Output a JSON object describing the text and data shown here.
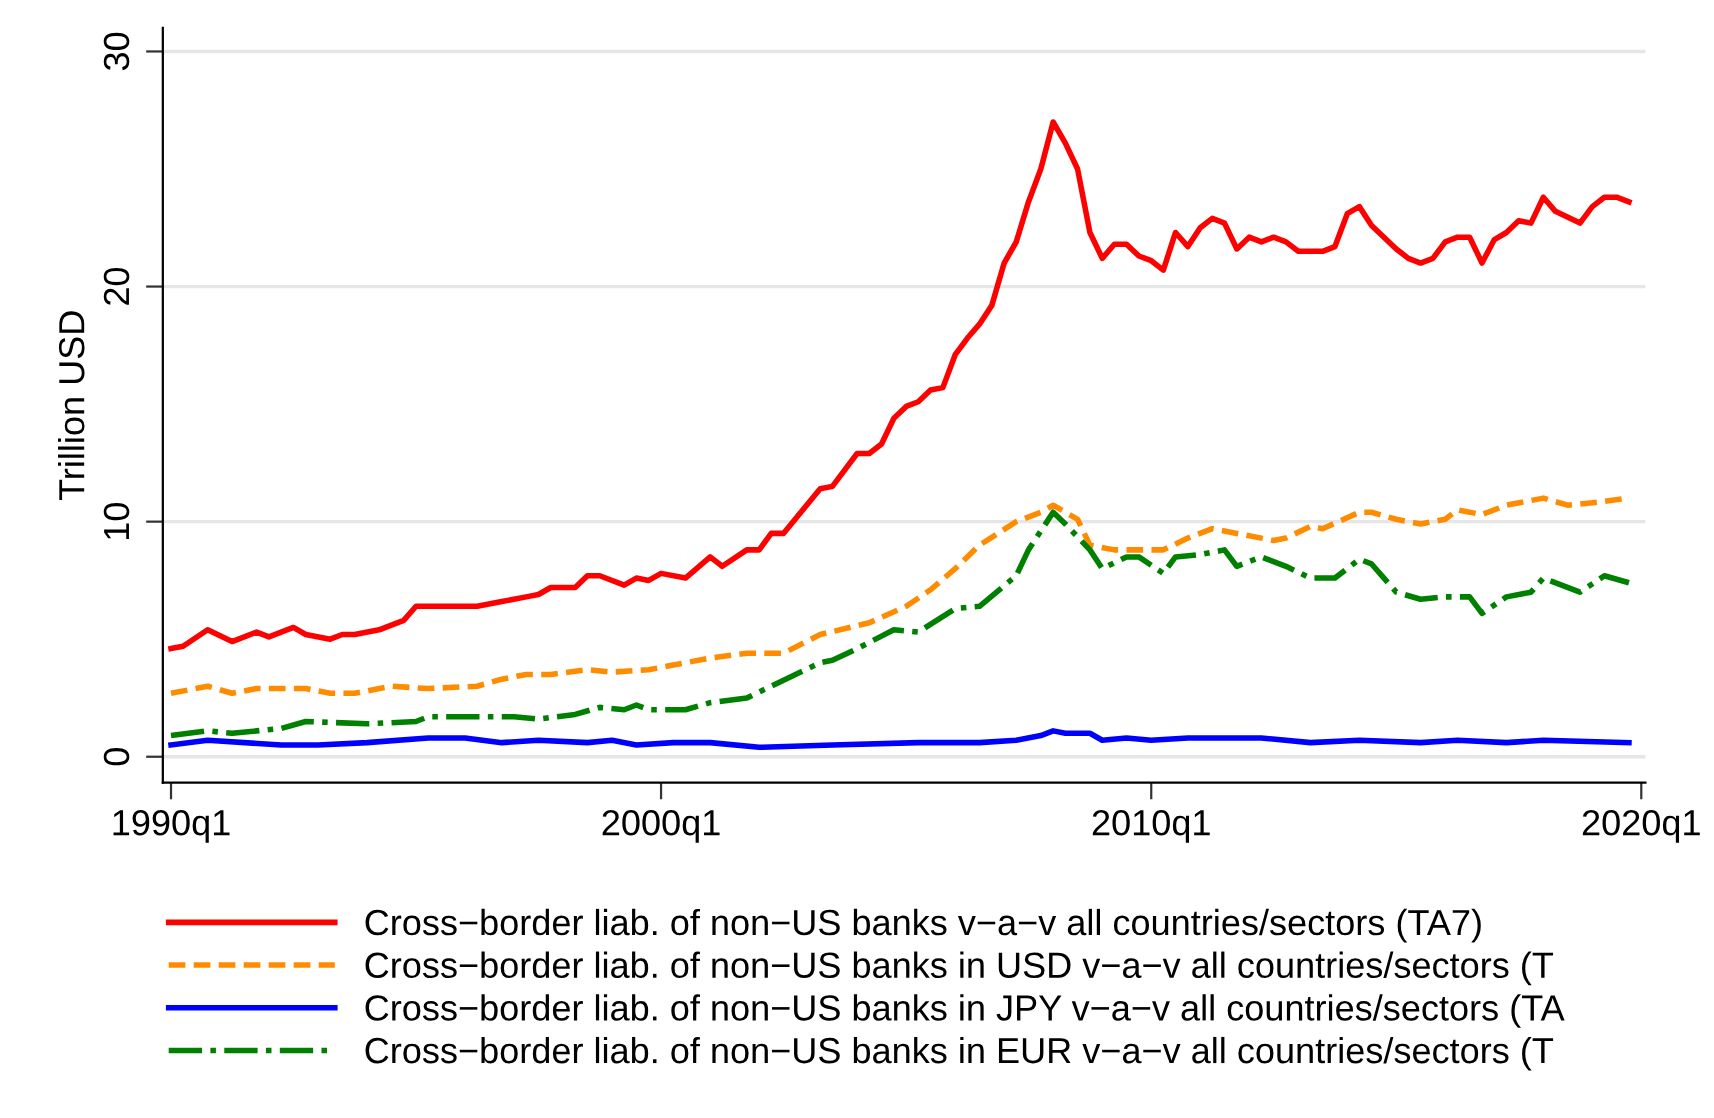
{
  "chart_data": {
    "type": "line",
    "ylabel": "Trillion USD",
    "xlim": [
      "1989-11",
      "2020-02"
    ],
    "ylim": [
      -1.1,
      31
    ],
    "xticks": [
      {
        "value": "1990-01",
        "label": "1990q1"
      },
      {
        "value": "2000-01",
        "label": "2000q1"
      },
      {
        "value": "2010-01",
        "label": "2010q1"
      },
      {
        "value": "2020-01",
        "label": "2020q1"
      }
    ],
    "yticks": [
      0,
      10,
      20,
      30
    ],
    "grid": "y",
    "legend": "bottom",
    "series": [
      {
        "name": "Cross−border liab. of non−US banks v−a−v all countries/sectors (TA7)",
        "color": "#ff0000",
        "line_style": "solid",
        "x": [
          "1990-01",
          "1990-04",
          "1990-10",
          "1991-04",
          "1991-10",
          "1992-01",
          "1992-07",
          "1992-10",
          "1993-04",
          "1993-07",
          "1993-10",
          "1994-04",
          "1994-10",
          "1995-01",
          "1995-07",
          "1995-10",
          "1996-04",
          "1996-10",
          "1997-04",
          "1997-07",
          "1997-10",
          "1998-04",
          "1998-07",
          "1998-10",
          "1999-04",
          "1999-07",
          "1999-10",
          "2000-01",
          "2000-07",
          "2001-01",
          "2001-04",
          "2001-10",
          "2002-01",
          "2002-04",
          "2002-07",
          "2003-04",
          "2003-07",
          "2004-01",
          "2004-04",
          "2004-07",
          "2004-10",
          "2005-01",
          "2005-04",
          "2005-07",
          "2005-10",
          "2006-01",
          "2006-04",
          "2006-07",
          "2006-10",
          "2007-01",
          "2007-04",
          "2007-07",
          "2007-10",
          "2008-01",
          "2008-04",
          "2008-07",
          "2008-10",
          "2009-01",
          "2009-04",
          "2009-07",
          "2009-10",
          "2010-01",
          "2010-04",
          "2010-07",
          "2010-10",
          "2011-01",
          "2011-04",
          "2011-07",
          "2011-10",
          "2012-01",
          "2012-04",
          "2012-07",
          "2012-10",
          "2013-01",
          "2013-07",
          "2013-10",
          "2014-01",
          "2014-04",
          "2014-07",
          "2014-10",
          "2015-01",
          "2015-04",
          "2015-07",
          "2015-10",
          "2016-01",
          "2016-04",
          "2016-07",
          "2016-10",
          "2017-01",
          "2017-04",
          "2017-07",
          "2017-10",
          "2018-01",
          "2018-04",
          "2018-10",
          "2019-01",
          "2019-04",
          "2019-07",
          "2019-10"
        ],
        "values": [
          4.6,
          4.7,
          5.4,
          4.9,
          5.3,
          5.1,
          5.5,
          5.2,
          5.0,
          5.2,
          5.2,
          5.4,
          5.8,
          6.4,
          6.4,
          6.4,
          6.4,
          6.6,
          6.8,
          6.9,
          7.2,
          7.2,
          7.7,
          7.7,
          7.3,
          7.6,
          7.5,
          7.8,
          7.6,
          8.5,
          8.1,
          8.8,
          8.8,
          9.5,
          9.5,
          11.4,
          11.5,
          12.9,
          12.9,
          13.3,
          14.4,
          14.9,
          15.1,
          15.6,
          15.7,
          17.1,
          17.8,
          18.4,
          19.2,
          21.0,
          21.9,
          23.6,
          25.0,
          27.0,
          26.1,
          25.0,
          22.3,
          21.2,
          21.8,
          21.8,
          21.3,
          21.1,
          20.7,
          22.3,
          21.7,
          22.5,
          22.9,
          22.7,
          21.6,
          22.1,
          21.9,
          22.1,
          21.9,
          21.5,
          21.5,
          21.7,
          23.1,
          23.4,
          22.6,
          22.1,
          21.6,
          21.2,
          21.0,
          21.2,
          21.9,
          22.1,
          22.1,
          21.0,
          22.0,
          22.3,
          22.8,
          22.7,
          23.8,
          23.2,
          22.7,
          23.4,
          23.8,
          23.8,
          23.6
        ]
      },
      {
        "name": "Cross−border liab. of non−US banks in USD v−a−v all countries/sectors (T",
        "color": "#ff8c00",
        "line_style": "dashed",
        "x": [
          "1990-01",
          "1990-10",
          "1991-04",
          "1991-10",
          "1992-10",
          "1993-04",
          "1993-10",
          "1994-07",
          "1995-04",
          "1996-04",
          "1996-10",
          "1997-04",
          "1997-10",
          "1998-07",
          "1999-01",
          "1999-10",
          "2000-04",
          "2001-01",
          "2001-10",
          "2002-07",
          "2003-04",
          "2004-04",
          "2005-01",
          "2005-07",
          "2006-01",
          "2006-07",
          "2007-04",
          "2007-10",
          "2008-01",
          "2008-07",
          "2008-10",
          "2009-04",
          "2009-10",
          "2010-04",
          "2010-10",
          "2011-04",
          "2011-10",
          "2012-07",
          "2012-10",
          "2013-04",
          "2013-07",
          "2014-04",
          "2014-07",
          "2015-01",
          "2015-07",
          "2016-01",
          "2016-04",
          "2016-10",
          "2017-04",
          "2018-01",
          "2018-07",
          "2019-01",
          "2019-10"
        ],
        "values": [
          2.7,
          3.0,
          2.7,
          2.9,
          2.9,
          2.7,
          2.7,
          3.0,
          2.9,
          3.0,
          3.3,
          3.5,
          3.5,
          3.7,
          3.6,
          3.7,
          3.9,
          4.2,
          4.4,
          4.4,
          5.2,
          5.7,
          6.4,
          7.1,
          8.0,
          9.0,
          10.0,
          10.4,
          10.7,
          10.1,
          9.0,
          8.8,
          8.8,
          8.8,
          9.3,
          9.7,
          9.5,
          9.2,
          9.3,
          9.8,
          9.7,
          10.4,
          10.4,
          10.1,
          9.9,
          10.1,
          10.5,
          10.3,
          10.7,
          11.0,
          10.7,
          10.8,
          11.0
        ]
      },
      {
        "name": "Cross−border liab. of non−US banks in JPY v−a−v all countries/sectors (TA",
        "color": "#0000ff",
        "line_style": "solid",
        "x": [
          "1990-01",
          "1990-10",
          "1992-04",
          "1993-01",
          "1994-01",
          "1995-04",
          "1996-01",
          "1996-10",
          "1997-07",
          "1998-07",
          "1999-01",
          "1999-07",
          "2000-04",
          "2001-01",
          "2002-01",
          "2003-07",
          "2005-04",
          "2006-07",
          "2007-04",
          "2007-10",
          "2008-01",
          "2008-04",
          "2008-10",
          "2009-01",
          "2009-07",
          "2010-01",
          "2010-10",
          "2011-07",
          "2012-04",
          "2013-04",
          "2014-04",
          "2015-07",
          "2016-04",
          "2017-04",
          "2018-01",
          "2019-10"
        ],
        "values": [
          0.5,
          0.7,
          0.5,
          0.5,
          0.6,
          0.8,
          0.8,
          0.6,
          0.7,
          0.6,
          0.7,
          0.5,
          0.6,
          0.6,
          0.4,
          0.5,
          0.6,
          0.6,
          0.7,
          0.9,
          1.1,
          1.0,
          1.0,
          0.7,
          0.8,
          0.7,
          0.8,
          0.8,
          0.8,
          0.6,
          0.7,
          0.6,
          0.7,
          0.6,
          0.7,
          0.6
        ]
      },
      {
        "name": "Cross−border liab. of non−US banks in EUR v−a−v all countries/sectors (T",
        "color": "#008000",
        "line_style": "dashdot",
        "x": [
          "1990-01",
          "1990-10",
          "1991-04",
          "1992-04",
          "1992-10",
          "1994-01",
          "1995-01",
          "1995-04",
          "1997-01",
          "1997-07",
          "1998-04",
          "1998-10",
          "1999-04",
          "1999-07",
          "1999-10",
          "2000-07",
          "2001-01",
          "2001-10",
          "2002-04",
          "2003-04",
          "2003-07",
          "2004-01",
          "2004-10",
          "2005-04",
          "2006-01",
          "2006-07",
          "2007-04",
          "2007-07",
          "2008-01",
          "2008-04",
          "2008-10",
          "2009-01",
          "2009-07",
          "2009-10",
          "2010-04",
          "2010-07",
          "2011-01",
          "2011-07",
          "2011-10",
          "2012-04",
          "2012-10",
          "2013-04",
          "2013-10",
          "2014-04",
          "2014-07",
          "2015-01",
          "2015-07",
          "2016-01",
          "2016-07",
          "2016-10",
          "2017-04",
          "2017-10",
          "2018-01",
          "2018-10",
          "2019-04",
          "2019-10"
        ],
        "values": [
          0.9,
          1.1,
          1.0,
          1.2,
          1.5,
          1.4,
          1.5,
          1.7,
          1.7,
          1.6,
          1.8,
          2.1,
          2.0,
          2.2,
          2.0,
          2.0,
          2.3,
          2.5,
          3.0,
          4.0,
          4.1,
          4.6,
          5.4,
          5.3,
          6.3,
          6.4,
          7.7,
          8.8,
          10.4,
          9.9,
          8.8,
          8.0,
          8.5,
          8.5,
          7.8,
          8.5,
          8.6,
          8.8,
          8.1,
          8.5,
          8.1,
          7.6,
          7.6,
          8.4,
          8.2,
          7.0,
          6.7,
          6.8,
          6.8,
          6.1,
          6.8,
          7.0,
          7.6,
          7.0,
          7.7,
          7.4
        ]
      }
    ]
  }
}
